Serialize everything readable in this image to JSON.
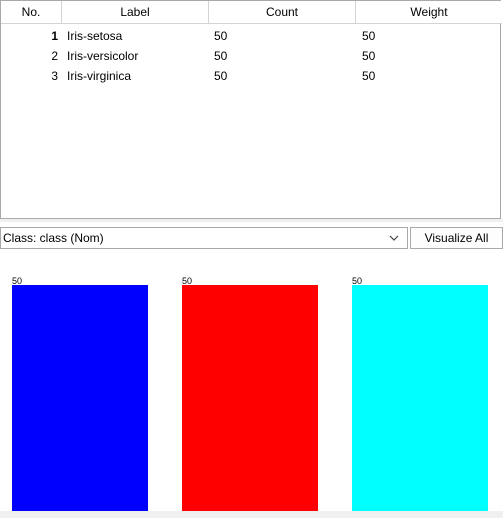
{
  "table": {
    "columns": [
      "No.",
      "Label",
      "Count",
      "Weight"
    ],
    "rows": [
      {
        "no": "1",
        "label": "Iris-setosa",
        "count": "50",
        "weight": "50"
      },
      {
        "no": "2",
        "label": "Iris-versicolor",
        "count": "50",
        "weight": "50"
      },
      {
        "no": "3",
        "label": "Iris-virginica",
        "count": "50",
        "weight": "50"
      }
    ]
  },
  "class_selector": {
    "selected": "Class: class (Nom)",
    "icon": "chevron-down-icon"
  },
  "visualize_button": {
    "label": "Visualize All"
  },
  "chart_data": {
    "type": "bar",
    "categories": [
      "Iris-setosa",
      "Iris-versicolor",
      "Iris-virginica"
    ],
    "values": [
      50,
      50,
      50
    ],
    "data_labels": [
      "50",
      "50",
      "50"
    ],
    "colors": [
      "#0000ff",
      "#ff0000",
      "#00ffff"
    ],
    "ylim": [
      0,
      50
    ],
    "grid": false,
    "legend": "none",
    "title": "",
    "xlabel": "",
    "ylabel": ""
  }
}
